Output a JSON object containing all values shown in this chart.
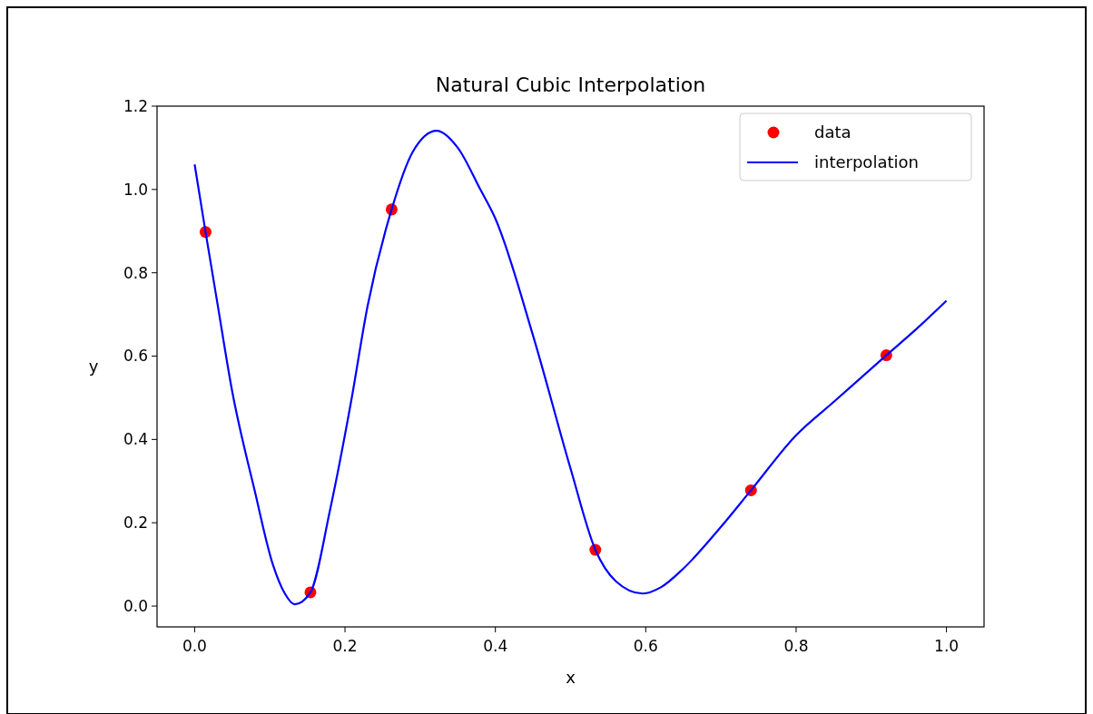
{
  "chart_data": {
    "type": "scatter",
    "title": "Natural Cubic Interpolation",
    "xlabel": "x",
    "ylabel": "y",
    "xlim": [
      -0.05,
      1.05
    ],
    "ylim": [
      -0.05,
      1.2
    ],
    "xticks": [
      {
        "value": 0,
        "label": "0.0"
      },
      0.2,
      0.4,
      0.6,
      0.8,
      {
        "value": 1,
        "label": "1.0"
      }
    ],
    "yticks": [
      {
        "value": 0,
        "label": "0.0"
      },
      0.2,
      0.4,
      0.6,
      0.8,
      {
        "value": 1,
        "label": "1.0"
      },
      1.2
    ],
    "legend": "top right",
    "grid": false,
    "series": [
      {
        "name": "data",
        "color": "#ff0000",
        "marker": "circle",
        "x": [
          0.0145,
          0.154,
          0.262,
          0.533,
          0.74,
          0.92
        ],
        "values": [
          0.898,
          0.033,
          0.952,
          0.135,
          0.278,
          0.602
        ]
      },
      {
        "name": "interpolation",
        "type": "line",
        "color": "#0000ff",
        "marker": "none",
        "line_style": "solid",
        "x": [
          0,
          0.0145,
          0.03,
          0.05,
          0.08,
          0.104,
          0.12,
          0.133,
          0.154,
          0.18,
          0.208,
          0.23,
          0.262,
          0.29,
          0.322,
          0.35,
          0.38,
          0.4,
          0.45,
          0.5,
          0.533,
          0.56,
          0.596,
          0.62,
          0.65,
          0.7,
          0.74,
          0.8,
          0.85,
          0.92,
          0.96,
          1.0
        ],
        "values": [
          1.06,
          0.898,
          0.73,
          0.515,
          0.276,
          0.1,
          0.03,
          0.004,
          0.033,
          0.23,
          0.49,
          0.72,
          0.952,
          1.09,
          1.141,
          1.1,
          1.0,
          0.93,
          0.65,
          0.33,
          0.135,
          0.06,
          0.03,
          0.045,
          0.09,
          0.19,
          0.278,
          0.41,
          0.49,
          0.602,
          0.665,
          0.733
        ]
      }
    ]
  }
}
